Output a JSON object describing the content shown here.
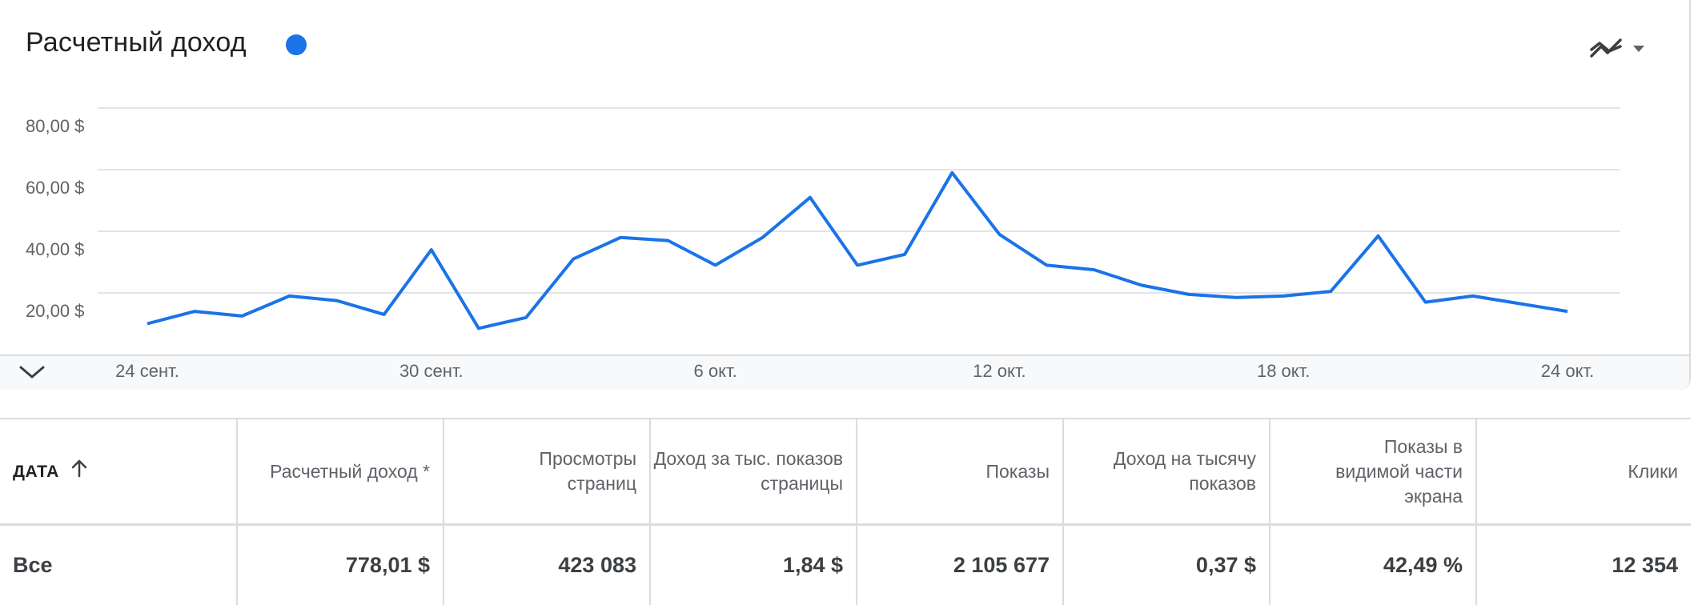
{
  "card": {
    "title": "Расчетный доход",
    "series_color": "#1a73e8"
  },
  "icons": {
    "trend": "trend-compare-icon",
    "dropdown": "arrow-drop-down-icon",
    "collapse": "chevron-down-icon",
    "sort": "arrow-upward-icon"
  },
  "chart_data": {
    "type": "line",
    "x": [
      "24 сент.",
      "25 сент.",
      "26 сент.",
      "27 сент.",
      "28 сент.",
      "29 сент.",
      "30 сент.",
      "1 окт.",
      "2 окт.",
      "3 окт.",
      "4 окт.",
      "5 окт.",
      "6 окт.",
      "7 окт.",
      "8 окт.",
      "9 окт.",
      "10 окт.",
      "11 окт.",
      "12 окт.",
      "13 окт.",
      "14 окт.",
      "15 окт.",
      "16 окт.",
      "17 окт.",
      "18 окт.",
      "19 окт.",
      "20 окт.",
      "21 окт.",
      "22 окт.",
      "23 окт.",
      "24 окт."
    ],
    "xticks": [
      "24 сент.",
      "30 сент.",
      "6 окт.",
      "12 окт.",
      "18 окт.",
      "24 окт."
    ],
    "yticks": [
      "80,00 $",
      "60,00 $",
      "40,00 $",
      "20,00 $"
    ],
    "ytick_values": [
      80,
      60,
      40,
      20
    ],
    "ylim": [
      0,
      80
    ],
    "grid": true,
    "series": [
      {
        "color": "#1a73e8",
        "values": [
          10,
          14,
          12.5,
          19,
          17.5,
          13,
          34,
          8.5,
          12,
          31,
          38,
          37,
          29,
          38,
          51,
          29,
          32.5,
          59,
          39,
          29,
          27.5,
          22.5,
          19.5,
          18.5,
          19,
          20.5,
          38.5,
          17,
          19,
          16.5,
          14
        ]
      }
    ]
  },
  "table": {
    "headers": {
      "date": "ДАТА",
      "c1": "Расчетный доход *",
      "c2": "Просмотры страниц",
      "c3": "Доход за тыс. показов страницы",
      "c4": "Показы",
      "c5": "Доход на тысячу показов",
      "c6": "Показы в видимой части экрана",
      "c7": "Клики"
    },
    "rows": [
      {
        "date": "Все",
        "c1": "778,01 $",
        "c2": "423 083",
        "c3": "1,84 $",
        "c4": "2 105 677",
        "c5": "0,37 $",
        "c6": "42,49 %",
        "c7": "12 354"
      }
    ]
  }
}
